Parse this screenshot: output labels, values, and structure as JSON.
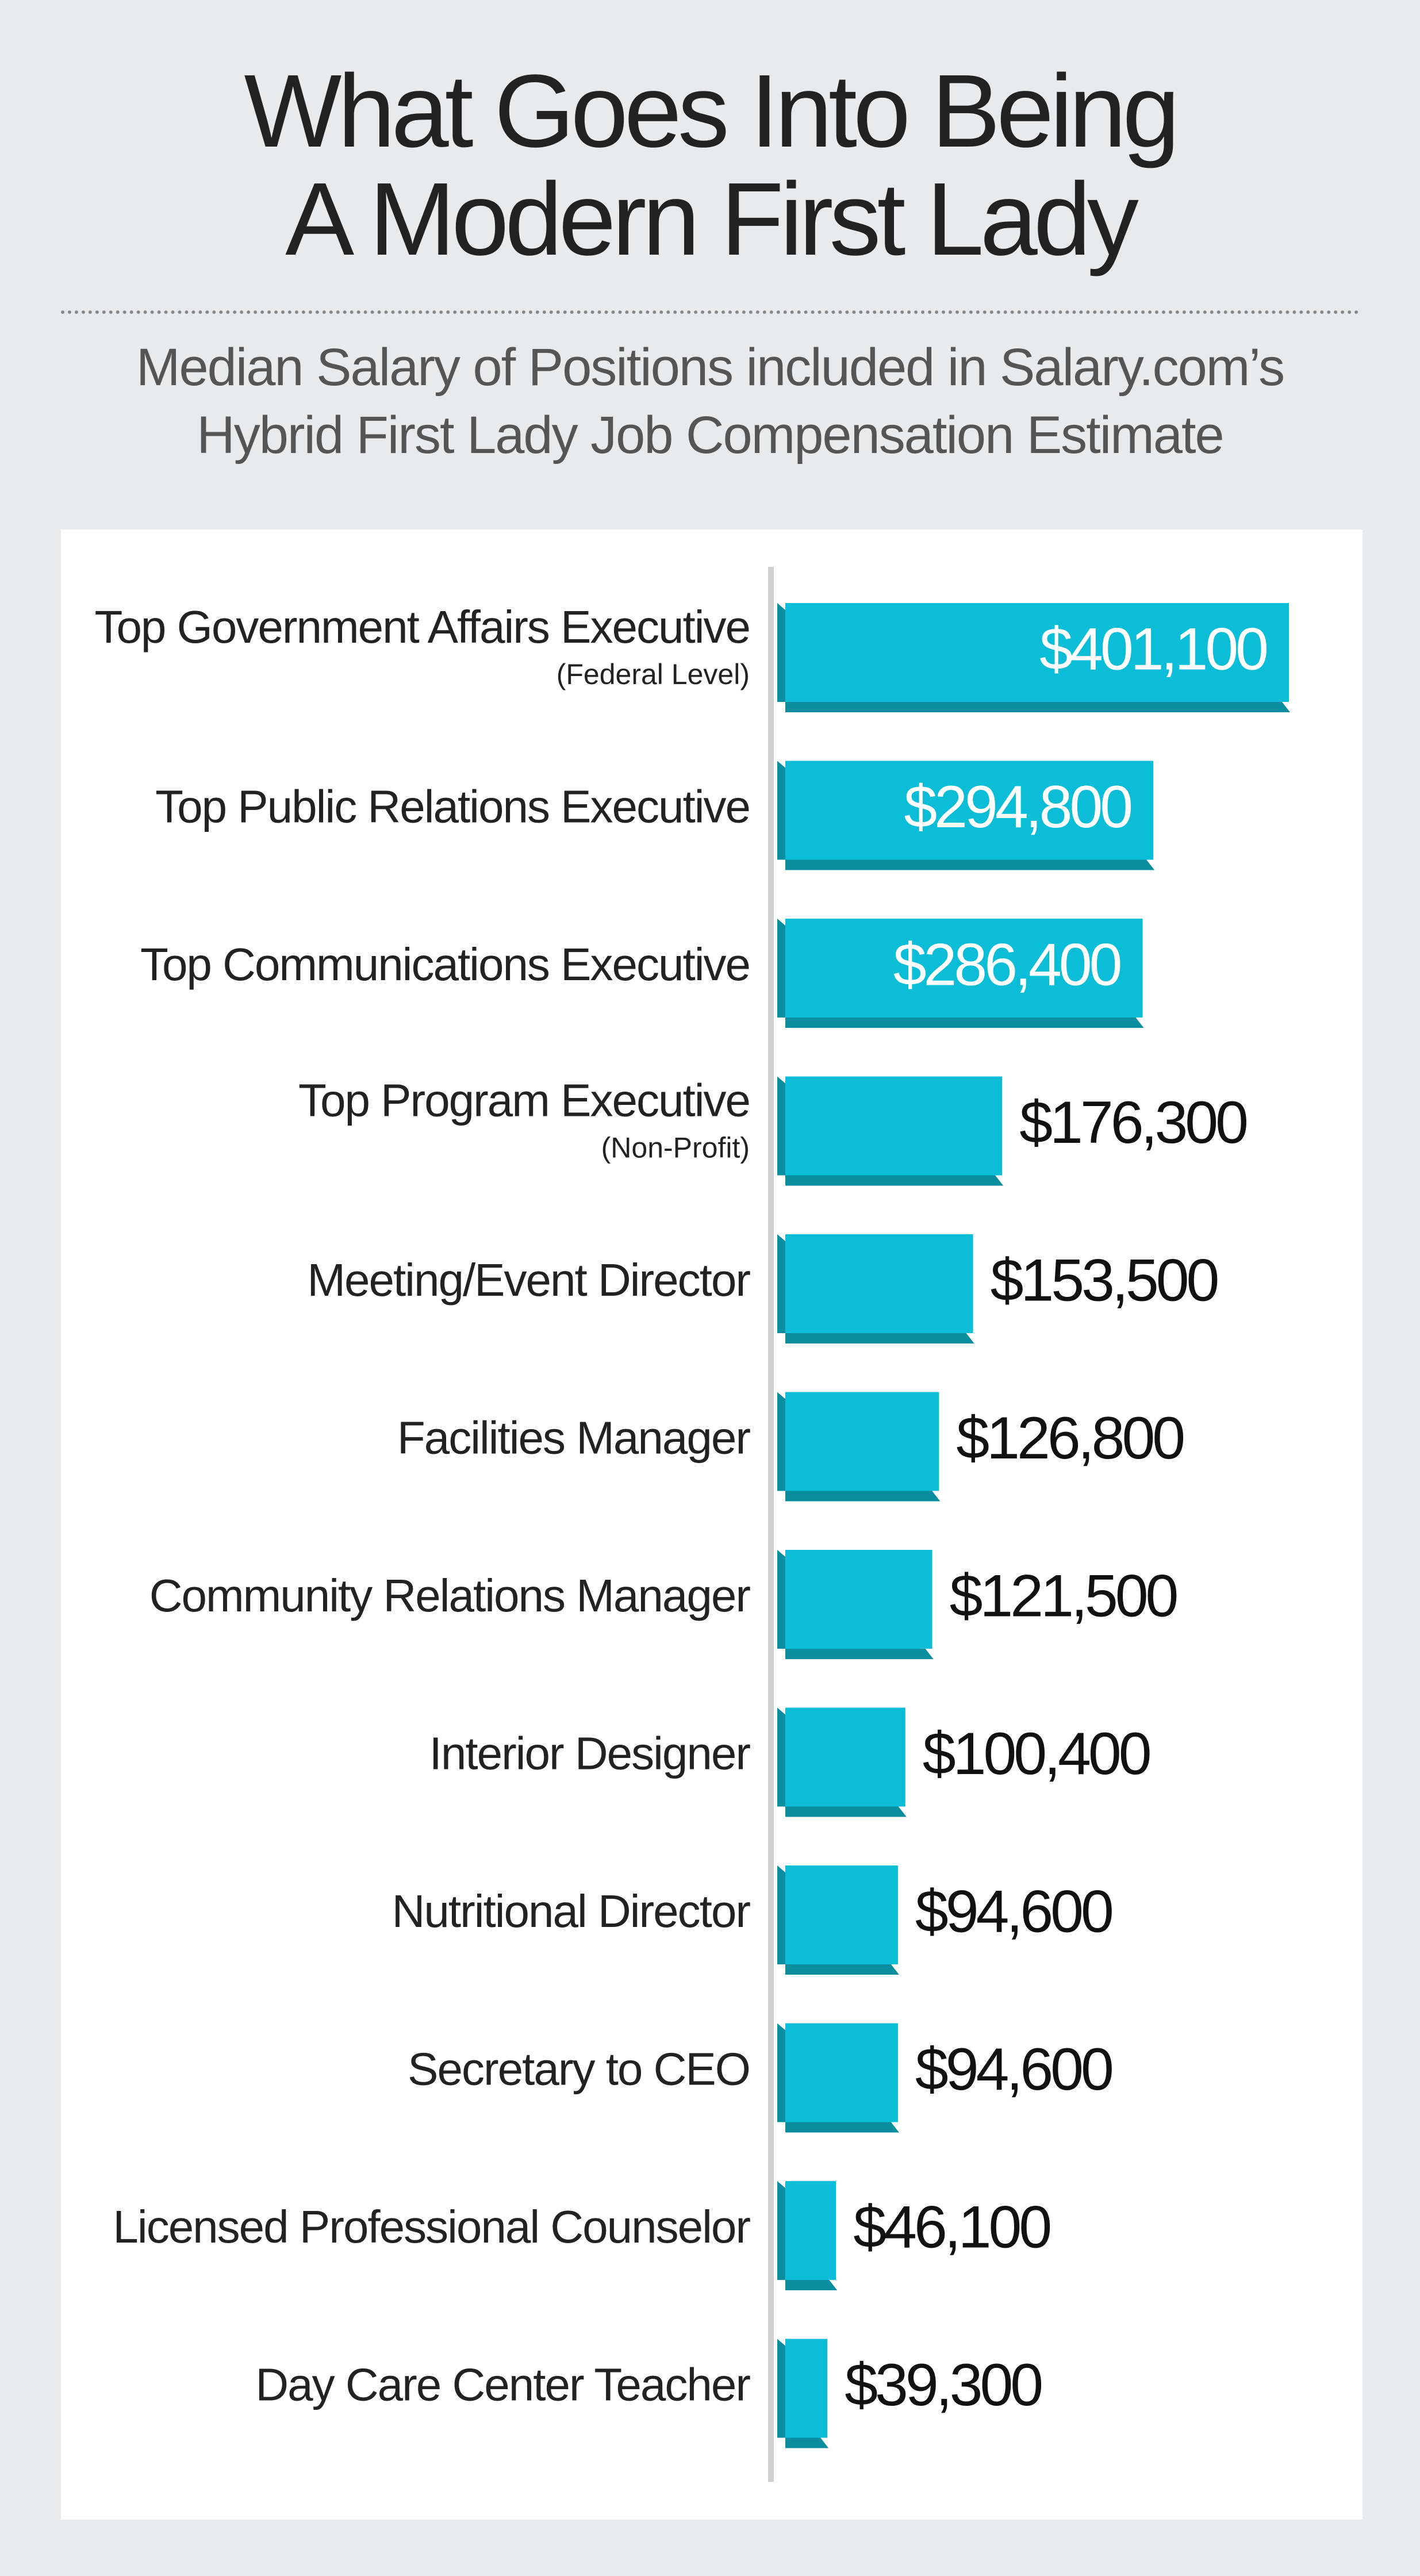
{
  "chart_data": {
    "type": "bar",
    "orientation": "horizontal",
    "title": "What Goes Into Being\nA Modern First Lady",
    "subtitle": "Median Salary of Positions included in Salary.com’s\nHybrid First Lady Job Compensation Estimate",
    "categories": [
      "Top Government Affairs Executive",
      "Top Public Relations Executive",
      "Top Communications Executive",
      "Top Program Executive",
      "Meeting/Event Director",
      "Facilities Manager",
      "Community Relations Manager",
      "Interior Designer",
      "Nutritional Director",
      "Secretary to CEO",
      "Licensed Professional Counselor",
      "Day Care Center Teacher"
    ],
    "category_notes": [
      "(Federal Level)",
      null,
      null,
      "(Non-Profit)",
      null,
      null,
      null,
      null,
      null,
      null,
      null,
      null
    ],
    "values": [
      401100,
      294800,
      286400,
      176300,
      153500,
      126800,
      121500,
      100400,
      94600,
      94600,
      46100,
      39300
    ],
    "value_labels": [
      "$401,100",
      "$294,800",
      "$286,400",
      "$176,300",
      "$153,500",
      "$126,800",
      "$121,500",
      "$100,400",
      "$94,600",
      "$94,600",
      "$46,100",
      "$39,300"
    ],
    "color": "#0bbdd6"
  }
}
